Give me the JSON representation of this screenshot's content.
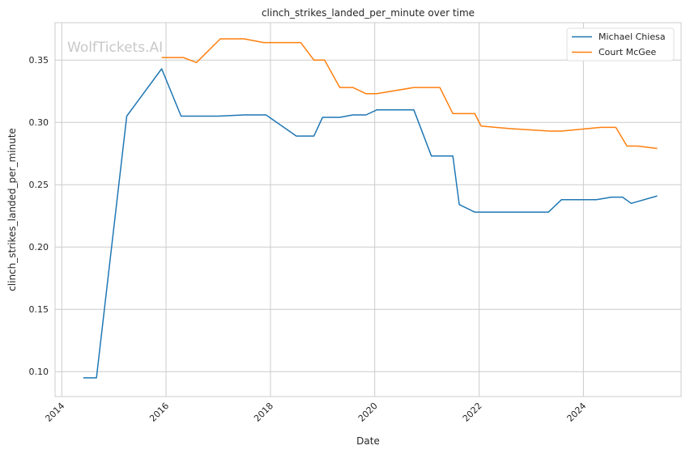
{
  "chart_data": {
    "type": "line",
    "title": "clinch_strikes_landed_per_minute over time",
    "xlabel": "Date",
    "ylabel": "clinch_strikes_landed_per_minute",
    "watermark": "WolfTickets.AI",
    "grid": true,
    "legend_position": "top-right",
    "xlim": [
      "2013-11-15",
      "2025-11-15"
    ],
    "ylim": [
      0.08,
      0.38
    ],
    "x_ticks": [
      {
        "date": "2014-01-01",
        "label": "2014"
      },
      {
        "date": "2016-01-01",
        "label": "2016"
      },
      {
        "date": "2018-01-01",
        "label": "2018"
      },
      {
        "date": "2020-01-01",
        "label": "2020"
      },
      {
        "date": "2022-01-01",
        "label": "2022"
      },
      {
        "date": "2024-01-01",
        "label": "2024"
      }
    ],
    "y_ticks": [
      {
        "value": 0.1,
        "label": "0.10"
      },
      {
        "value": 0.15,
        "label": "0.15"
      },
      {
        "value": 0.2,
        "label": "0.20"
      },
      {
        "value": 0.25,
        "label": "0.25"
      },
      {
        "value": 0.3,
        "label": "0.30"
      },
      {
        "value": 0.35,
        "label": "0.35"
      }
    ],
    "series": [
      {
        "name": "Michael Chiesa",
        "color": "#1f77b4",
        "points": [
          [
            "2014-06-01",
            0.095
          ],
          [
            "2014-09-01",
            0.095
          ],
          [
            "2015-04-01",
            0.305
          ],
          [
            "2015-12-01",
            0.343
          ],
          [
            "2016-04-15",
            0.305
          ],
          [
            "2017-01-01",
            0.305
          ],
          [
            "2017-07-01",
            0.306
          ],
          [
            "2017-12-01",
            0.306
          ],
          [
            "2018-07-01",
            0.289
          ],
          [
            "2018-11-01",
            0.289
          ],
          [
            "2019-01-01",
            0.304
          ],
          [
            "2019-05-01",
            0.304
          ],
          [
            "2019-08-01",
            0.306
          ],
          [
            "2019-11-01",
            0.306
          ],
          [
            "2020-01-15",
            0.31
          ],
          [
            "2020-07-01",
            0.31
          ],
          [
            "2020-10-01",
            0.31
          ],
          [
            "2021-02-01",
            0.273
          ],
          [
            "2021-07-01",
            0.273
          ],
          [
            "2021-08-15",
            0.234
          ],
          [
            "2021-12-01",
            0.228
          ],
          [
            "2023-05-01",
            0.228
          ],
          [
            "2023-08-01",
            0.238
          ],
          [
            "2024-04-01",
            0.238
          ],
          [
            "2024-07-15",
            0.24
          ],
          [
            "2024-10-01",
            0.24
          ],
          [
            "2024-12-01",
            0.235
          ],
          [
            "2025-06-01",
            0.241
          ]
        ]
      },
      {
        "name": "Court McGee",
        "color": "#ff7f0e",
        "points": [
          [
            "2015-12-01",
            0.352
          ],
          [
            "2016-05-01",
            0.352
          ],
          [
            "2016-08-01",
            0.348
          ],
          [
            "2017-01-15",
            0.367
          ],
          [
            "2017-07-01",
            0.367
          ],
          [
            "2017-11-15",
            0.364
          ],
          [
            "2018-08-01",
            0.364
          ],
          [
            "2018-11-01",
            0.35
          ],
          [
            "2019-01-15",
            0.35
          ],
          [
            "2019-05-01",
            0.328
          ],
          [
            "2019-08-01",
            0.328
          ],
          [
            "2019-11-01",
            0.323
          ],
          [
            "2020-01-15",
            0.323
          ],
          [
            "2020-10-01",
            0.328
          ],
          [
            "2021-04-01",
            0.328
          ],
          [
            "2021-07-01",
            0.307
          ],
          [
            "2021-12-01",
            0.307
          ],
          [
            "2022-01-15",
            0.297
          ],
          [
            "2022-08-01",
            0.295
          ],
          [
            "2023-05-15",
            0.293
          ],
          [
            "2023-08-01",
            0.293
          ],
          [
            "2024-05-01",
            0.296
          ],
          [
            "2024-08-15",
            0.296
          ],
          [
            "2024-11-01",
            0.281
          ],
          [
            "2025-01-15",
            0.281
          ],
          [
            "2025-06-01",
            0.279
          ]
        ]
      }
    ]
  }
}
